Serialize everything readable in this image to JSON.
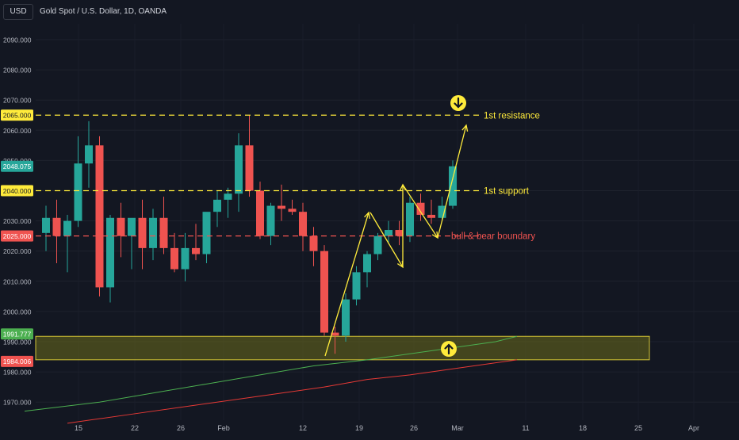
{
  "header": {
    "currency": "USD",
    "symbol_title": "Gold Spot / U.S. Dollar, 1D, OANDA"
  },
  "colors": {
    "background": "#131722",
    "bull": "#26a69a",
    "bear": "#ef5350",
    "annotation": "#ffeb3b",
    "boundary": "#ef5350",
    "ma_fast": "#4caf50",
    "ma_slow": "#e53935",
    "support_zone_fill": "#6b6b1c",
    "axis_text": "#b2b5be"
  },
  "chart_data": {
    "type": "candlestick",
    "y_ticks": [
      "1970.000",
      "1980.000",
      "1990.000",
      "2000.000",
      "2010.000",
      "2020.000",
      "2030.000",
      "2040.000",
      "2050.000",
      "2060.000",
      "2070.000",
      "2080.000",
      "2090.000"
    ],
    "ylim": [
      1966,
      2098
    ],
    "x_ticks": [
      "15",
      "22",
      "26",
      "Feb",
      "12",
      "19",
      "26",
      "Mar",
      "11",
      "18",
      "25",
      "Apr"
    ],
    "price_labels": [
      {
        "value": 2065,
        "text": "2065.000",
        "color": "#ffeb3b",
        "text_color": "#131722"
      },
      {
        "value": 2048.075,
        "text": "2048.075",
        "color": "#26a69a",
        "text_color": "#ffffff"
      },
      {
        "value": 2040,
        "text": "2040.000",
        "color": "#ffeb3b",
        "text_color": "#131722"
      },
      {
        "value": 2025,
        "text": "2025.000",
        "color": "#ef5350",
        "text_color": "#ffffff"
      },
      {
        "value": 1991.777,
        "text": "1991.777",
        "color": "#4caf50",
        "text_color": "#ffffff"
      },
      {
        "value": 1984.006,
        "text": "1984.006",
        "color": "#ef5350",
        "text_color": "#ffffff"
      }
    ],
    "candles": [
      {
        "o": 2026,
        "h": 2035,
        "l": 2020,
        "c": 2031
      },
      {
        "o": 2031,
        "h": 2037,
        "l": 2016,
        "c": 2025
      },
      {
        "o": 2025,
        "h": 2032,
        "l": 2013,
        "c": 2030
      },
      {
        "o": 2030,
        "h": 2058,
        "l": 2028,
        "c": 2049
      },
      {
        "o": 2049,
        "h": 2063,
        "l": 2041,
        "c": 2055
      },
      {
        "o": 2055,
        "h": 2058,
        "l": 2005,
        "c": 2008
      },
      {
        "o": 2008,
        "h": 2032,
        "l": 2003,
        "c": 2031
      },
      {
        "o": 2031,
        "h": 2036,
        "l": 2018,
        "c": 2025
      },
      {
        "o": 2025,
        "h": 2030,
        "l": 2014,
        "c": 2031
      },
      {
        "o": 2031,
        "h": 2037,
        "l": 2014,
        "c": 2021
      },
      {
        "o": 2021,
        "h": 2034,
        "l": 2017,
        "c": 2031
      },
      {
        "o": 2031,
        "h": 2038,
        "l": 2019,
        "c": 2021
      },
      {
        "o": 2021,
        "h": 2026,
        "l": 2013,
        "c": 2014
      },
      {
        "o": 2014,
        "h": 2026,
        "l": 2010,
        "c": 2021
      },
      {
        "o": 2021,
        "h": 2029,
        "l": 2017,
        "c": 2019
      },
      {
        "o": 2019,
        "h": 2032,
        "l": 2016,
        "c": 2033
      },
      {
        "o": 2033,
        "h": 2040,
        "l": 2028,
        "c": 2037
      },
      {
        "o": 2037,
        "h": 2041,
        "l": 2031,
        "c": 2039
      },
      {
        "o": 2039,
        "h": 2059,
        "l": 2033,
        "c": 2055
      },
      {
        "o": 2055,
        "h": 2065,
        "l": 2038,
        "c": 2040
      },
      {
        "o": 2040,
        "h": 2043,
        "l": 2024,
        "c": 2025
      },
      {
        "o": 2025,
        "h": 2036,
        "l": 2022,
        "c": 2035
      },
      {
        "o": 2035,
        "h": 2042,
        "l": 2030,
        "c": 2034
      },
      {
        "o": 2034,
        "h": 2037,
        "l": 2032,
        "c": 2033
      },
      {
        "o": 2033,
        "h": 2036,
        "l": 2020,
        "c": 2025
      },
      {
        "o": 2025,
        "h": 2028,
        "l": 2015,
        "c": 2020
      },
      {
        "o": 2020,
        "h": 2022,
        "l": 1992,
        "c": 1993
      },
      {
        "o": 1993,
        "h": 1995,
        "l": 1986,
        "c": 1992
      },
      {
        "o": 1992,
        "h": 2006,
        "l": 1990,
        "c": 2004
      },
      {
        "o": 2004,
        "h": 2015,
        "l": 2002,
        "c": 2013
      },
      {
        "o": 2013,
        "h": 2020,
        "l": 2008,
        "c": 2019
      },
      {
        "o": 2019,
        "h": 2026,
        "l": 2017,
        "c": 2025
      },
      {
        "o": 2025,
        "h": 2030,
        "l": 2023,
        "c": 2027
      },
      {
        "o": 2027,
        "h": 2030,
        "l": 2022,
        "c": 2025
      },
      {
        "o": 2025,
        "h": 2038,
        "l": 2023,
        "c": 2036
      },
      {
        "o": 2036,
        "h": 2039,
        "l": 2030,
        "c": 2032
      },
      {
        "o": 2032,
        "h": 2037,
        "l": 2029,
        "c": 2031
      },
      {
        "o": 2031,
        "h": 2038,
        "l": 2030,
        "c": 2035
      },
      {
        "o": 2035,
        "h": 2050,
        "l": 2034,
        "c": 2048.075
      }
    ],
    "horizontal_lines": [
      {
        "value": 2065,
        "label": "1st resistance",
        "color": "#ffeb3b",
        "style": "dashed"
      },
      {
        "value": 2040,
        "label": "1st support",
        "color": "#ffeb3b",
        "style": "dashed"
      },
      {
        "value": 2025,
        "label": "bull & bear boundary",
        "color": "#ef5350",
        "style": "dashed"
      }
    ],
    "support_zone": {
      "from": 1984.006,
      "to": 1991.777
    },
    "moving_averages": [
      {
        "color": "#4caf50",
        "points": [
          [
            -2,
            1967
          ],
          [
            5,
            1970
          ],
          [
            10,
            1973
          ],
          [
            15,
            1976
          ],
          [
            20,
            1979
          ],
          [
            25,
            1982
          ],
          [
            30,
            1984
          ],
          [
            34,
            1986
          ],
          [
            38,
            1988
          ],
          [
            42,
            1990
          ],
          [
            44,
            1991.777
          ]
        ]
      },
      {
        "color": "#e53935",
        "points": [
          [
            2,
            1963
          ],
          [
            8,
            1966
          ],
          [
            14,
            1969
          ],
          [
            20,
            1972
          ],
          [
            26,
            1975
          ],
          [
            30,
            1977.5
          ],
          [
            34,
            1979
          ],
          [
            38,
            1981
          ],
          [
            42,
            1983
          ],
          [
            44,
            1984.006
          ]
        ]
      }
    ]
  }
}
